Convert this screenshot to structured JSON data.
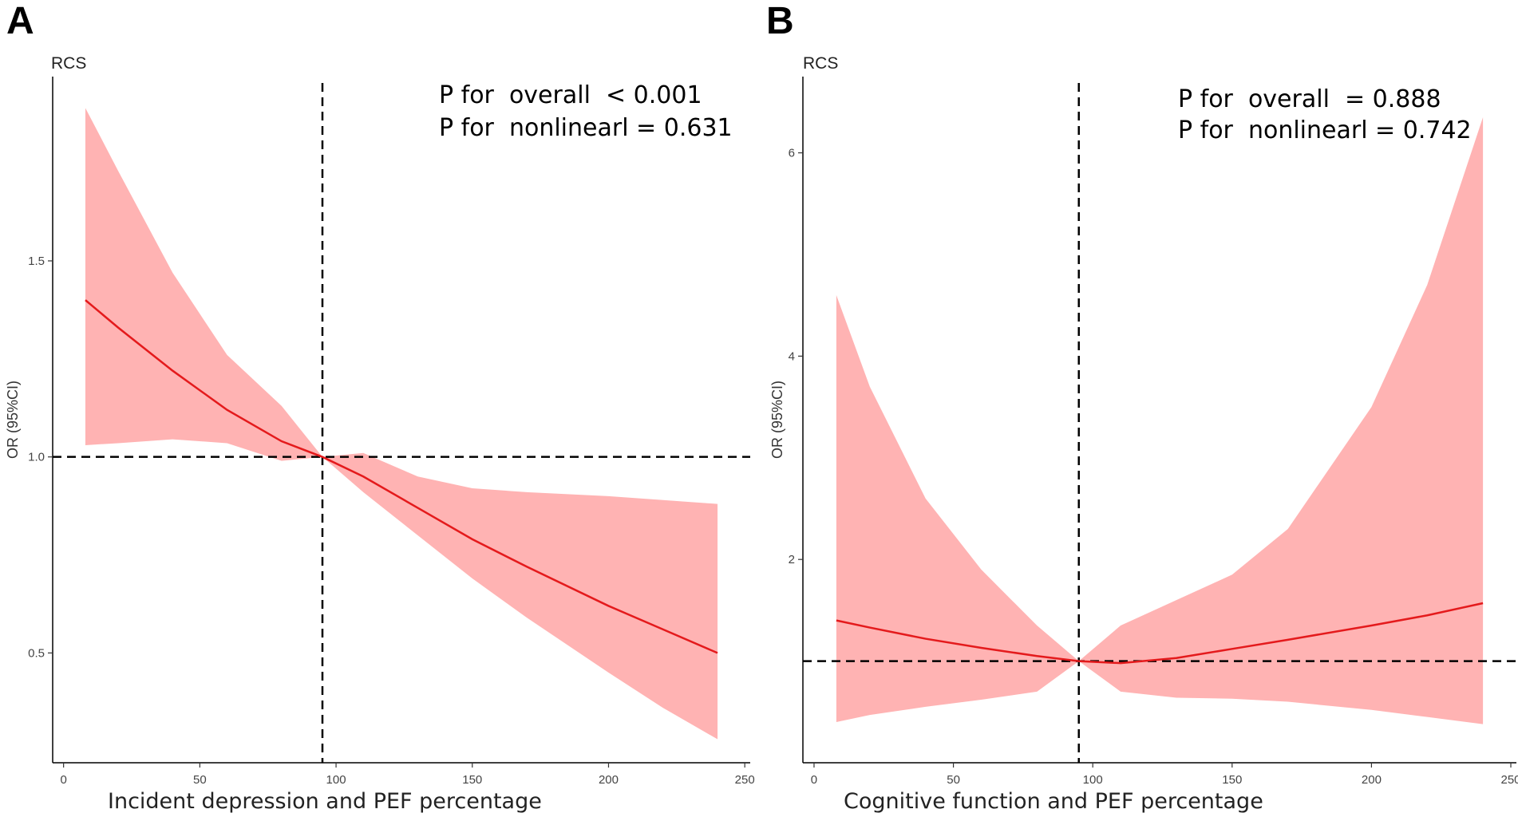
{
  "chart_data": [
    {
      "panel": "A",
      "type": "area",
      "title": "RCS",
      "xlabel": "Incident depression and PEF percentage",
      "ylabel": "OR (95%CI)",
      "xlim": [
        -4,
        252
      ],
      "ylim": [
        0.22,
        1.97
      ],
      "xticks": [
        0,
        50,
        100,
        150,
        200,
        250
      ],
      "yticks": [
        0.5,
        1.0,
        1.5
      ],
      "ytick_labels": [
        "0.5",
        "1.0",
        "1.5"
      ],
      "vline_x": 95,
      "hline_y": 1.0,
      "annotations": [
        "P for  overall  < 0.001",
        "P for  nonlinearl = 0.631"
      ],
      "series": [
        {
          "name": "OR",
          "x": [
            8,
            20,
            40,
            60,
            80,
            95,
            110,
            130,
            150,
            170,
            200,
            220,
            240
          ],
          "y": [
            1.4,
            1.33,
            1.22,
            1.12,
            1.04,
            1.0,
            0.95,
            0.87,
            0.79,
            0.72,
            0.62,
            0.56,
            0.5
          ],
          "lower": [
            1.03,
            1.035,
            1.045,
            1.035,
            0.99,
            1.0,
            0.91,
            0.8,
            0.69,
            0.59,
            0.45,
            0.36,
            0.28
          ],
          "upper": [
            1.89,
            1.73,
            1.47,
            1.26,
            1.13,
            1.0,
            1.01,
            0.95,
            0.92,
            0.91,
            0.9,
            0.89,
            0.88
          ]
        }
      ]
    },
    {
      "panel": "B",
      "type": "area",
      "title": "RCS",
      "xlabel": "Cognitive function and PEF percentage",
      "ylabel": "OR (95%CI)",
      "xlim": [
        -4,
        252
      ],
      "ylim": [
        0.0,
        6.75
      ],
      "xticks": [
        0,
        50,
        100,
        150,
        200,
        250
      ],
      "yticks": [
        2,
        4,
        6
      ],
      "ytick_labels": [
        "2",
        "4",
        "6"
      ],
      "vline_x": 95,
      "hline_y": 1.0,
      "annotations": [
        "P for  overall  = 0.888",
        "P for  nonlinearl = 0.742"
      ],
      "series": [
        {
          "name": "OR",
          "x": [
            8,
            20,
            40,
            60,
            80,
            95,
            110,
            130,
            150,
            170,
            200,
            220,
            240
          ],
          "y": [
            1.4,
            1.33,
            1.22,
            1.13,
            1.05,
            1.0,
            0.98,
            1.03,
            1.12,
            1.21,
            1.35,
            1.45,
            1.57
          ],
          "lower": [
            0.4,
            0.47,
            0.55,
            0.62,
            0.7,
            1.0,
            0.7,
            0.64,
            0.63,
            0.6,
            0.52,
            0.45,
            0.38
          ],
          "upper": [
            4.6,
            3.7,
            2.6,
            1.9,
            1.35,
            1.0,
            1.35,
            1.6,
            1.85,
            2.3,
            3.5,
            4.7,
            6.35
          ]
        }
      ]
    }
  ]
}
